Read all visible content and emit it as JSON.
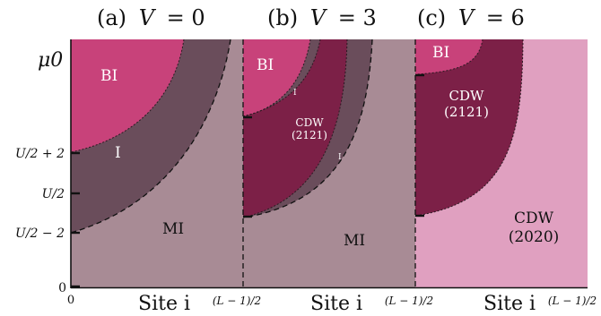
{
  "panels": [
    {
      "title_prefix": "(a)",
      "title_var": "V",
      "title_eq": "= 0",
      "regions": {
        "bi": "BI",
        "i": "I",
        "mi": "MI"
      },
      "xlabel": "Site i",
      "x_start": "0",
      "x_end": "(L − 1)/2"
    },
    {
      "title_prefix": "(b)",
      "title_var": "V",
      "title_eq": "= 3",
      "regions": {
        "bi": "BI",
        "i_top": "I",
        "cdw_line1": "CDW",
        "cdw_line2": "(2121)",
        "i_bottom": "I",
        "mi": "MI"
      },
      "xlabel": "Site i",
      "x_end": "(L − 1)/2"
    },
    {
      "title_prefix": "(c)",
      "title_var": "V",
      "title_eq": "= 6",
      "regions": {
        "bi": "BI",
        "cdw_top_line1": "CDW",
        "cdw_top_line2": "(2121)",
        "cdw_bottom_line1": "CDW",
        "cdw_bottom_line2": "(2020)"
      },
      "xlabel": "Site i",
      "x_end": "(L − 1)/2"
    }
  ],
  "y_axis": {
    "label": "μ0",
    "ticks": [
      "U/2 + 2",
      "U/2",
      "U/2 − 2",
      "0"
    ]
  },
  "colors": {
    "bi": "#c8427a",
    "insulator": "#6a4d5b",
    "mott": "#a88b95",
    "cdw_2121": "#7c2047",
    "cdw_2020": "#e0a0c0"
  }
}
